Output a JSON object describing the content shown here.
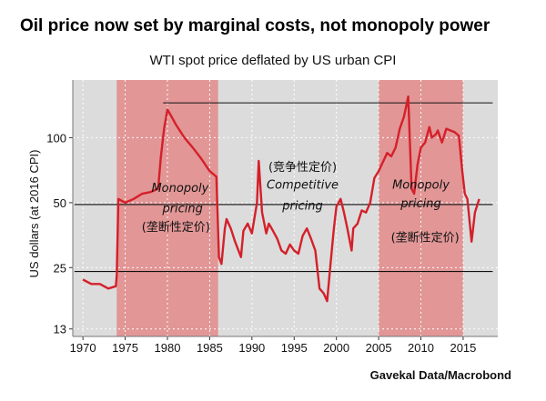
{
  "header": {
    "title": "Oil price now set by marginal costs, not monopoly power",
    "subtitle": "WTI spot price deflated by US urban CPI",
    "source": "Gavekal Data/Macrobond"
  },
  "chart_data": {
    "type": "line",
    "title": "Oil price now set by marginal costs, not monopoly power",
    "subtitle": "WTI spot price deflated by US urban CPI",
    "xlabel": "",
    "ylabel": "US dollars (at 2016 CPI)",
    "y_scale": "log",
    "xlim": [
      1968.8,
      2019.1
    ],
    "ylim": [
      12,
      185
    ],
    "x_ticks": [
      "1970",
      "1975",
      "1980",
      "1985",
      "1990",
      "1995",
      "2000",
      "2005",
      "2010",
      "2015"
    ],
    "y_ticks": [
      "13",
      "25",
      "50",
      "100"
    ],
    "grid": true,
    "background_color": "#dcdcdc",
    "line_color": "#d4202a",
    "shaded_color": "#e29696",
    "shaded_periods": [
      {
        "start": 1974.0,
        "end": 1986.0
      },
      {
        "start": 2005.0,
        "end": 2015.0
      }
    ],
    "reference_lines": [
      {
        "value": 145,
        "from": 1979.5,
        "to": 2018.5
      },
      {
        "value": 49,
        "from": 1969.0,
        "to": 2018.5
      },
      {
        "value": 24,
        "from": 1969.0,
        "to": 2018.5
      }
    ],
    "annotations": [
      {
        "text": "Monopoly",
        "style": "italic",
        "x": 1981.5,
        "y": 56
      },
      {
        "text": "pricing",
        "style": "italic",
        "x": 1981.8,
        "y": 45
      },
      {
        "text": "(垄断性定价)",
        "style": "chinese",
        "x": 1981.0,
        "y": 37
      },
      {
        "text": "(竞争性定价)",
        "style": "chinese",
        "x": 1996.0,
        "y": 70
      },
      {
        "text": "Competitive",
        "style": "italic",
        "x": 1996.0,
        "y": 58
      },
      {
        "text": "pricing",
        "style": "italic",
        "x": 1996.0,
        "y": 46.5
      },
      {
        "text": "Monopoly",
        "style": "italic",
        "x": 2010.0,
        "y": 58
      },
      {
        "text": "pricing",
        "style": "italic",
        "x": 2010.0,
        "y": 47.5
      },
      {
        "text": "(垄断性定价)",
        "style": "chinese",
        "x": 2010.5,
        "y": 33
      }
    ],
    "series": [
      {
        "x": [
          1970,
          1971,
          1972,
          1973,
          1973.9,
          1974.0,
          1974.2,
          1975,
          1976,
          1977,
          1978,
          1978.9,
          1979.2,
          1979.6,
          1980,
          1980.5,
          1981,
          1982,
          1983,
          1984,
          1985,
          1985.8,
          1986.1,
          1986.4,
          1986.8,
          1987,
          1987.5,
          1988,
          1988.7,
          1989,
          1989.5,
          1990,
          1990.6,
          1990.8,
          1991.2,
          1991.7,
          1992,
          1992.5,
          1993,
          1993.5,
          1994,
          1994.5,
          1995,
          1995.5,
          1996,
          1996.5,
          1997,
          1997.5,
          1998,
          1998.5,
          1998.9,
          1999.3,
          1999.7,
          2000,
          2000.5,
          2000.9,
          2001.3,
          2001.8,
          2002,
          2002.5,
          2003,
          2003.5,
          2004,
          2004.5,
          2005,
          2005.5,
          2006,
          2006.5,
          2007,
          2007.5,
          2008,
          2008.5,
          2008.9,
          2009.2,
          2009.6,
          2010,
          2010.5,
          2011,
          2011.3,
          2011.8,
          2012,
          2012.5,
          2013,
          2013.5,
          2014,
          2014.5,
          2014.9,
          2015.2,
          2015.5,
          2016,
          2016.4,
          2016.9
        ],
        "values": [
          22,
          21,
          21,
          20,
          20.5,
          23,
          52,
          50,
          52,
          55,
          56,
          58,
          80,
          110,
          135,
          125,
          115,
          100,
          90,
          80,
          70,
          66,
          28,
          26,
          38,
          42,
          38,
          33,
          28,
          37,
          40,
          36,
          50,
          78,
          45,
          36,
          40,
          37,
          34,
          30,
          29,
          32,
          30,
          29,
          35,
          38,
          34,
          30,
          20,
          19,
          17.5,
          26,
          38,
          48,
          52,
          45,
          38,
          30,
          38,
          40,
          46,
          45,
          50,
          65,
          70,
          77,
          85,
          82,
          90,
          110,
          125,
          155,
          58,
          55,
          75,
          90,
          95,
          112,
          100,
          104,
          108,
          95,
          110,
          108,
          106,
          102,
          70,
          55,
          52,
          33,
          45,
          52
        ]
      }
    ]
  }
}
